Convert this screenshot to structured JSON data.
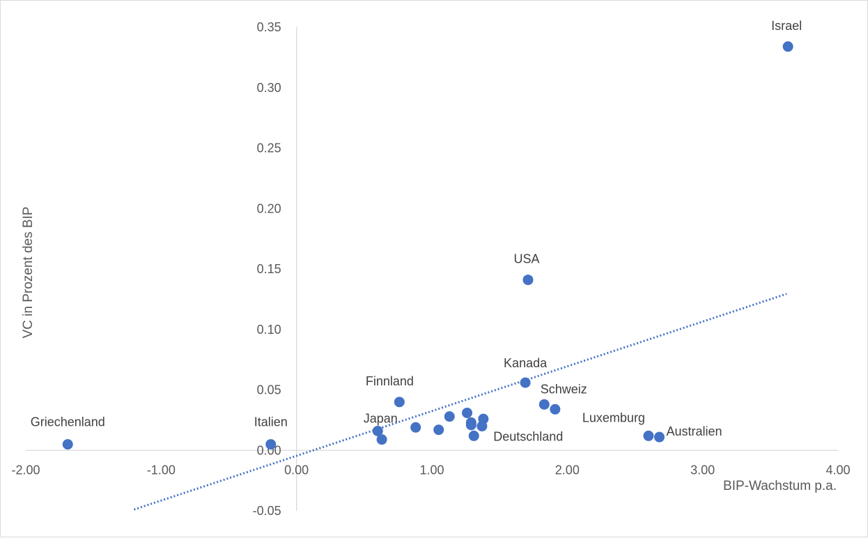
{
  "chart_data": {
    "type": "scatter",
    "title": "",
    "xlabel": "BIP-Wachstum p.a.",
    "ylabel": "VC in Prozent des BIP",
    "xlim": [
      -2.0,
      4.0
    ],
    "ylim": [
      -0.05,
      0.35
    ],
    "x_ticks": [
      "-2.00",
      "-1.00",
      "0.00",
      "1.00",
      "2.00",
      "3.00",
      "4.00"
    ],
    "y_ticks": [
      "0.35",
      "0.30",
      "0.25",
      "0.20",
      "0.15",
      "0.10",
      "0.05",
      "0.00",
      "-0.05"
    ],
    "grid": false,
    "legend": "none",
    "marker_color": "#4472C4",
    "trendline": {
      "type": "linear",
      "style": "dotted",
      "color": "#4472C4",
      "x_start": -1.2,
      "x_end": 3.62,
      "slope": 0.037,
      "intercept": -0.0045
    },
    "points": [
      {
        "label": "Israel",
        "x": 3.63,
        "y": 0.334
      },
      {
        "label": "USA",
        "x": 1.71,
        "y": 0.141
      },
      {
        "label": "Kanada",
        "x": 1.69,
        "y": 0.056
      },
      {
        "label": "Schweiz",
        "x": 1.83,
        "y": 0.038
      },
      {
        "label": "",
        "x": 1.91,
        "y": 0.034
      },
      {
        "label": "Finnland",
        "x": 0.76,
        "y": 0.04
      },
      {
        "label": "Luxemburg",
        "x": 2.6,
        "y": 0.012
      },
      {
        "label": "Australien",
        "x": 2.68,
        "y": 0.011
      },
      {
        "label": "Griechenland",
        "x": -1.69,
        "y": 0.005
      },
      {
        "label": "Italien",
        "x": -0.19,
        "y": 0.005
      },
      {
        "label": "Japan",
        "x": 0.6,
        "y": 0.016
      },
      {
        "label": "",
        "x": 0.63,
        "y": 0.009
      },
      {
        "label": "",
        "x": 0.88,
        "y": 0.019
      },
      {
        "label": "",
        "x": 1.05,
        "y": 0.017
      },
      {
        "label": "",
        "x": 1.13,
        "y": 0.028
      },
      {
        "label": "",
        "x": 1.26,
        "y": 0.031
      },
      {
        "label": "",
        "x": 1.29,
        "y": 0.023
      },
      {
        "label": "",
        "x": 1.29,
        "y": 0.021
      },
      {
        "label": "",
        "x": 1.37,
        "y": 0.02
      },
      {
        "label": "",
        "x": 1.38,
        "y": 0.026
      },
      {
        "label": "Deutschland",
        "x": 1.31,
        "y": 0.012
      }
    ]
  }
}
